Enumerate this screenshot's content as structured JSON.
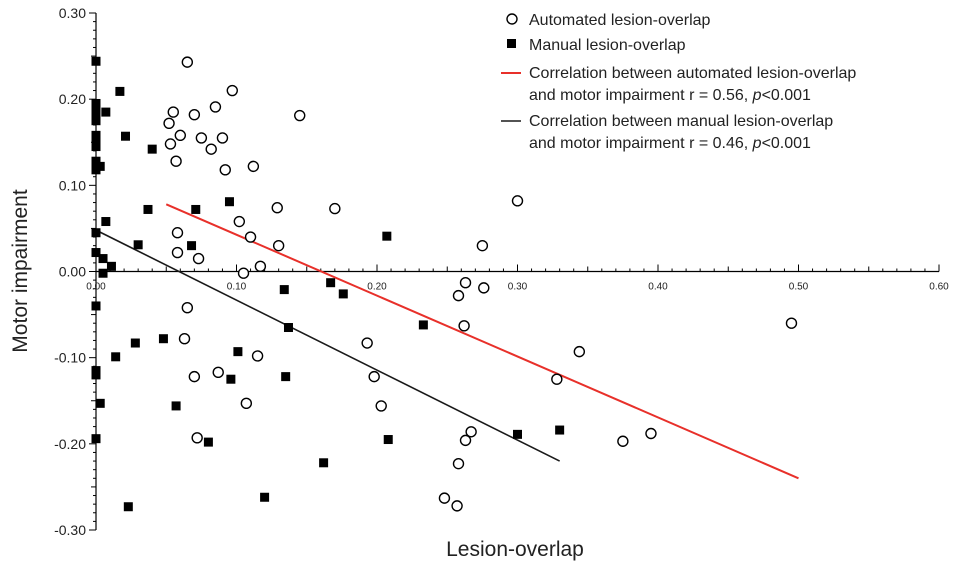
{
  "chart_data": {
    "type": "scatter",
    "xlabel": "Lesion-overlap",
    "ylabel": "Motor impairment",
    "xlim": [
      0,
      0.6
    ],
    "ylim": [
      -0.3,
      0.3
    ],
    "x_ticks": [
      "0.00",
      "0.10",
      "0.20",
      "0.30",
      "0.40",
      "0.50",
      "0.60"
    ],
    "y_ticks": [
      "0.30",
      "0.20",
      "0.10",
      "0.00",
      "-0.10",
      "-0.20",
      "-0.30"
    ],
    "legend_position": "top-right",
    "legend": [
      {
        "marker": "open-circle",
        "lines": [
          "Automated lesion-overlap"
        ]
      },
      {
        "marker": "filled-square",
        "lines": [
          "Manual lesion-overlap"
        ]
      },
      {
        "marker": "red-line",
        "lines": [
          "Correlation between automated lesion-overlap",
          "and motor impairment  r = 0.56, p<0.001"
        ]
      },
      {
        "marker": "black-line",
        "lines": [
          "Correlation between manual lesion-overlap",
          "and motor impairment  r = 0.46, p<0.001"
        ]
      }
    ],
    "series": [
      {
        "name": "Automated lesion-overlap",
        "marker": "open-circle",
        "color": "#000000",
        "points": [
          [
            0.065,
            0.243
          ],
          [
            0.097,
            0.21
          ],
          [
            0.055,
            0.185
          ],
          [
            0.07,
            0.182
          ],
          [
            0.145,
            0.181
          ],
          [
            0.085,
            0.191
          ],
          [
            0.052,
            0.172
          ],
          [
            0.06,
            0.158
          ],
          [
            0.075,
            0.155
          ],
          [
            0.09,
            0.155
          ],
          [
            0.053,
            0.148
          ],
          [
            0.082,
            0.142
          ],
          [
            0.057,
            0.128
          ],
          [
            0.092,
            0.118
          ],
          [
            0.112,
            0.122
          ],
          [
            0.3,
            0.082
          ],
          [
            0.129,
            0.074
          ],
          [
            0.17,
            0.073
          ],
          [
            0.102,
            0.058
          ],
          [
            0.058,
            0.045
          ],
          [
            0.11,
            0.04
          ],
          [
            0.13,
            0.03
          ],
          [
            0.275,
            0.03
          ],
          [
            0.058,
            0.022
          ],
          [
            0.073,
            0.015
          ],
          [
            0.117,
            0.006
          ],
          [
            0.105,
            -0.002
          ],
          [
            0.263,
            -0.013
          ],
          [
            0.276,
            -0.019
          ],
          [
            0.258,
            -0.028
          ],
          [
            0.262,
            -0.063
          ],
          [
            0.495,
            -0.06
          ],
          [
            0.065,
            -0.042
          ],
          [
            0.063,
            -0.078
          ],
          [
            0.193,
            -0.083
          ],
          [
            0.344,
            -0.093
          ],
          [
            0.115,
            -0.098
          ],
          [
            0.087,
            -0.117
          ],
          [
            0.07,
            -0.122
          ],
          [
            0.198,
            -0.122
          ],
          [
            0.328,
            -0.125
          ],
          [
            0.107,
            -0.153
          ],
          [
            0.203,
            -0.156
          ],
          [
            0.267,
            -0.186
          ],
          [
            0.395,
            -0.188
          ],
          [
            0.072,
            -0.193
          ],
          [
            0.263,
            -0.196
          ],
          [
            0.375,
            -0.197
          ],
          [
            0.258,
            -0.223
          ],
          [
            0.248,
            -0.263
          ],
          [
            0.257,
            -0.272
          ]
        ]
      },
      {
        "name": "Manual lesion-overlap",
        "marker": "filled-square",
        "color": "#000000",
        "points": [
          [
            0.0,
            0.244
          ],
          [
            0.0,
            0.195
          ],
          [
            0.0,
            0.188
          ],
          [
            0.0,
            0.182
          ],
          [
            0.0,
            0.175
          ],
          [
            0.0,
            0.158
          ],
          [
            0.0,
            0.15
          ],
          [
            0.0,
            0.145
          ],
          [
            0.0,
            0.128
          ],
          [
            0.0,
            0.118
          ],
          [
            0.0,
            0.045
          ],
          [
            0.0,
            0.022
          ],
          [
            0.0,
            -0.04
          ],
          [
            0.0,
            -0.115
          ],
          [
            0.0,
            -0.12
          ],
          [
            0.0,
            -0.194
          ],
          [
            0.003,
            0.122
          ],
          [
            0.003,
            -0.153
          ],
          [
            0.005,
            0.015
          ],
          [
            0.005,
            -0.002
          ],
          [
            0.007,
            0.058
          ],
          [
            0.007,
            0.185
          ],
          [
            0.011,
            0.006
          ],
          [
            0.014,
            -0.099
          ],
          [
            0.017,
            0.209
          ],
          [
            0.021,
            0.157
          ],
          [
            0.023,
            -0.273
          ],
          [
            0.028,
            -0.083
          ],
          [
            0.03,
            0.031
          ],
          [
            0.037,
            0.072
          ],
          [
            0.04,
            0.142
          ],
          [
            0.048,
            -0.078
          ],
          [
            0.057,
            -0.156
          ],
          [
            0.068,
            0.03
          ],
          [
            0.071,
            0.072
          ],
          [
            0.08,
            -0.198
          ],
          [
            0.095,
            0.081
          ],
          [
            0.096,
            -0.125
          ],
          [
            0.101,
            -0.093
          ],
          [
            0.12,
            -0.262
          ],
          [
            0.134,
            -0.021
          ],
          [
            0.135,
            -0.122
          ],
          [
            0.137,
            -0.065
          ],
          [
            0.162,
            -0.222
          ],
          [
            0.167,
            -0.013
          ],
          [
            0.176,
            -0.026
          ],
          [
            0.207,
            0.041
          ],
          [
            0.208,
            -0.195
          ],
          [
            0.233,
            -0.062
          ],
          [
            0.3,
            -0.189
          ],
          [
            0.33,
            -0.184
          ]
        ]
      }
    ],
    "trend_lines": [
      {
        "name": "Correlation between automated lesion-overlap and motor impairment",
        "color": "#e8302a",
        "from": [
          0.05,
          0.078
        ],
        "to": [
          0.5,
          -0.24
        ]
      },
      {
        "name": "Correlation between manual lesion-overlap and motor impairment",
        "color": "#1a1a1a",
        "from": [
          0.0,
          0.048
        ],
        "to": [
          0.33,
          -0.22
        ]
      }
    ]
  }
}
